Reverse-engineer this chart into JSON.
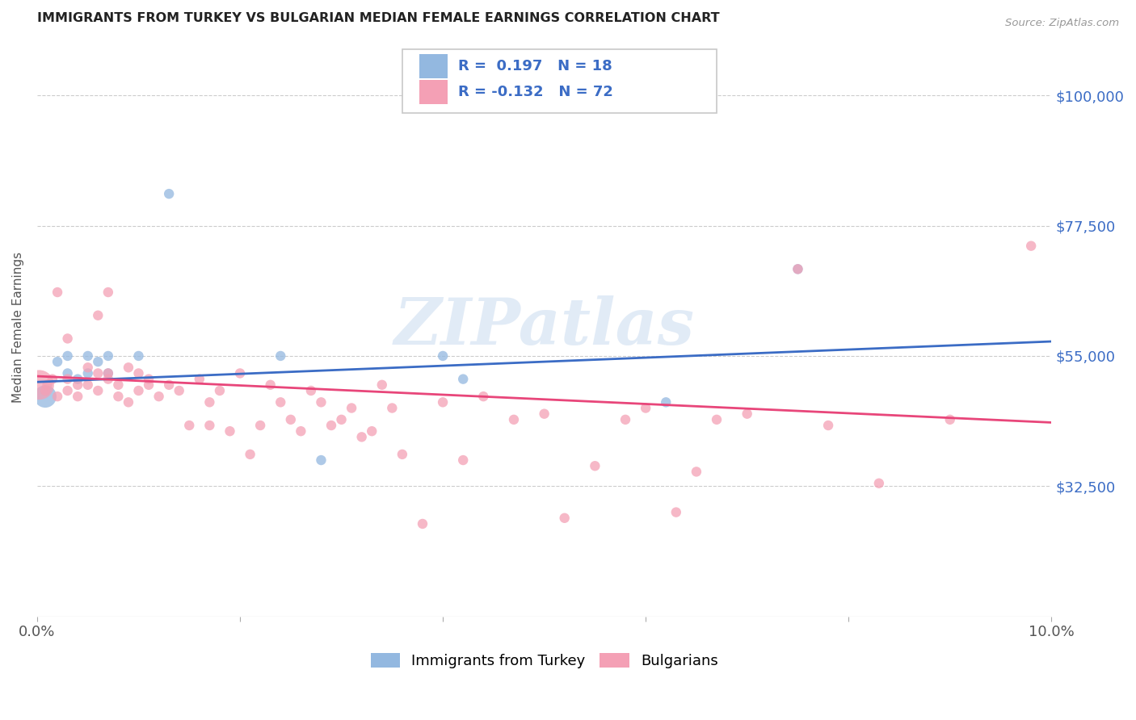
{
  "title": "IMMIGRANTS FROM TURKEY VS BULGARIAN MEDIAN FEMALE EARNINGS CORRELATION CHART",
  "source": "Source: ZipAtlas.com",
  "ylabel": "Median Female Earnings",
  "xlim": [
    0.0,
    0.1
  ],
  "ylim": [
    10000,
    110000
  ],
  "xtick_values": [
    0.0,
    0.02,
    0.04,
    0.06,
    0.08,
    0.1
  ],
  "xticklabels": [
    "0.0%",
    "",
    "",
    "",
    "",
    "10.0%"
  ],
  "ytick_values": [
    32500,
    55000,
    77500,
    100000
  ],
  "ytick_labels": [
    "$32,500",
    "$55,000",
    "$77,500",
    "$100,000"
  ],
  "watermark": "ZIPatlas",
  "legend_line1": "R =  0.197   N = 18",
  "legend_line2": "R = -0.132   N = 72",
  "legend_label_blue": "Immigrants from Turkey",
  "legend_label_pink": "Bulgarians",
  "blue_color": "#93B8E0",
  "pink_color": "#F4A0B5",
  "trend_blue_color": "#3B6CC5",
  "trend_pink_color": "#E8467A",
  "legend_text_color": "#3B6CC5",
  "right_label_color": "#3B6CC5",
  "grid_color": "#CCCCCC",
  "turkey_x": [
    0.0008,
    0.002,
    0.003,
    0.003,
    0.004,
    0.005,
    0.005,
    0.006,
    0.007,
    0.007,
    0.01,
    0.013,
    0.024,
    0.028,
    0.04,
    0.042,
    0.062,
    0.075
  ],
  "turkey_y": [
    48000,
    54000,
    55000,
    52000,
    51000,
    55000,
    52000,
    54000,
    55000,
    52000,
    55000,
    83000,
    55000,
    37000,
    55000,
    51000,
    47000,
    70000
  ],
  "turkey_size": [
    400,
    80,
    80,
    80,
    80,
    80,
    80,
    80,
    80,
    80,
    80,
    80,
    80,
    80,
    80,
    80,
    80,
    80
  ],
  "bulgarian_x": [
    0.0002,
    0.0008,
    0.001,
    0.0015,
    0.002,
    0.002,
    0.003,
    0.003,
    0.003,
    0.004,
    0.004,
    0.005,
    0.005,
    0.006,
    0.006,
    0.006,
    0.007,
    0.007,
    0.007,
    0.008,
    0.008,
    0.009,
    0.009,
    0.01,
    0.01,
    0.011,
    0.011,
    0.012,
    0.013,
    0.014,
    0.015,
    0.016,
    0.017,
    0.017,
    0.018,
    0.019,
    0.02,
    0.021,
    0.022,
    0.023,
    0.024,
    0.025,
    0.026,
    0.027,
    0.028,
    0.029,
    0.03,
    0.031,
    0.032,
    0.033,
    0.034,
    0.035,
    0.036,
    0.038,
    0.04,
    0.042,
    0.044,
    0.047,
    0.05,
    0.052,
    0.055,
    0.058,
    0.06,
    0.063,
    0.065,
    0.067,
    0.07,
    0.075,
    0.078,
    0.083,
    0.09,
    0.098
  ],
  "bulgarian_y": [
    50000,
    49000,
    50000,
    51000,
    66000,
    48000,
    58000,
    51000,
    49000,
    50000,
    48000,
    53000,
    50000,
    62000,
    52000,
    49000,
    66000,
    52000,
    51000,
    50000,
    48000,
    53000,
    47000,
    52000,
    49000,
    50000,
    51000,
    48000,
    50000,
    49000,
    43000,
    51000,
    47000,
    43000,
    49000,
    42000,
    52000,
    38000,
    43000,
    50000,
    47000,
    44000,
    42000,
    49000,
    47000,
    43000,
    44000,
    46000,
    41000,
    42000,
    50000,
    46000,
    38000,
    26000,
    47000,
    37000,
    48000,
    44000,
    45000,
    27000,
    36000,
    44000,
    46000,
    28000,
    35000,
    44000,
    45000,
    70000,
    43000,
    33000,
    44000,
    74000
  ],
  "bulgarian_size": [
    700,
    80,
    80,
    80,
    80,
    80,
    80,
    80,
    80,
    80,
    80,
    80,
    80,
    80,
    80,
    80,
    80,
    80,
    80,
    80,
    80,
    80,
    80,
    80,
    80,
    80,
    80,
    80,
    80,
    80,
    80,
    80,
    80,
    80,
    80,
    80,
    80,
    80,
    80,
    80,
    80,
    80,
    80,
    80,
    80,
    80,
    80,
    80,
    80,
    80,
    80,
    80,
    80,
    80,
    80,
    80,
    80,
    80,
    80,
    80,
    80,
    80,
    80,
    80,
    80,
    80,
    80,
    80,
    80,
    80,
    80,
    80
  ],
  "turkey_trend": [
    0.0,
    50500,
    0.1,
    57500
  ],
  "bulgarian_trend": [
    0.0,
    51500,
    0.1,
    43500
  ]
}
